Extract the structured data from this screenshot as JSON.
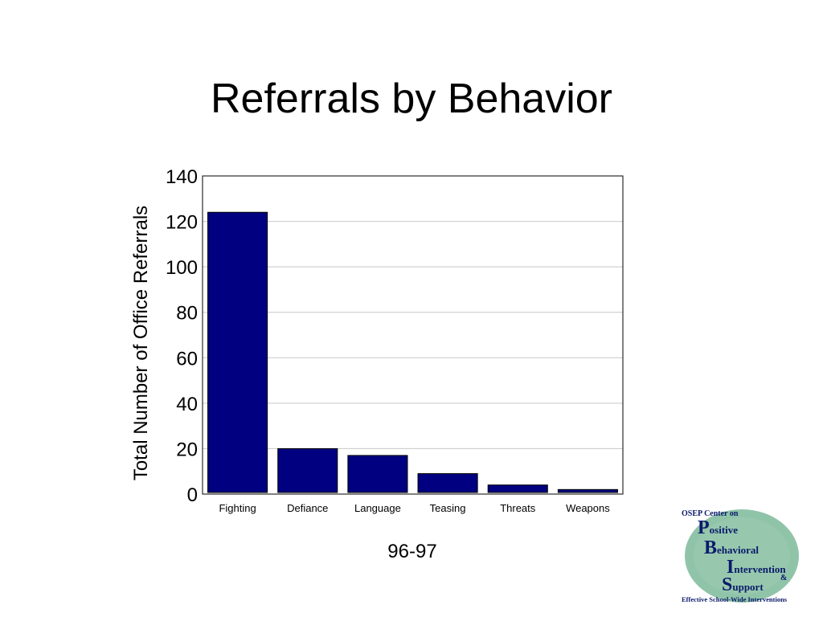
{
  "slide": {
    "title": "Referrals by Behavior"
  },
  "chart_data": {
    "type": "bar",
    "categories": [
      "Fighting",
      "Defiance",
      "Language",
      "Teasing",
      "Threats",
      "Weapons"
    ],
    "values": [
      124,
      20,
      17,
      9,
      4,
      2
    ],
    "ylabel": "Total Number of Office Referrals",
    "xlabel": "96-97",
    "ylim": [
      0,
      140
    ],
    "yticks": [
      0,
      20,
      40,
      60,
      80,
      100,
      120,
      140
    ],
    "grid": true,
    "bar_color": "#000080"
  },
  "logo": {
    "header": "OSEP Center on",
    "lines": [
      {
        "initial": "P",
        "rest": "ositive"
      },
      {
        "initial": "B",
        "rest": "ehavioral"
      },
      {
        "initial": "I",
        "rest": "ntervention"
      },
      {
        "initial": "S",
        "rest": "upport"
      }
    ],
    "amp": "&",
    "footer": "Effective School-Wide Interventions",
    "circle_color": "#7dba9a",
    "text_color": "#0a1a6b"
  }
}
